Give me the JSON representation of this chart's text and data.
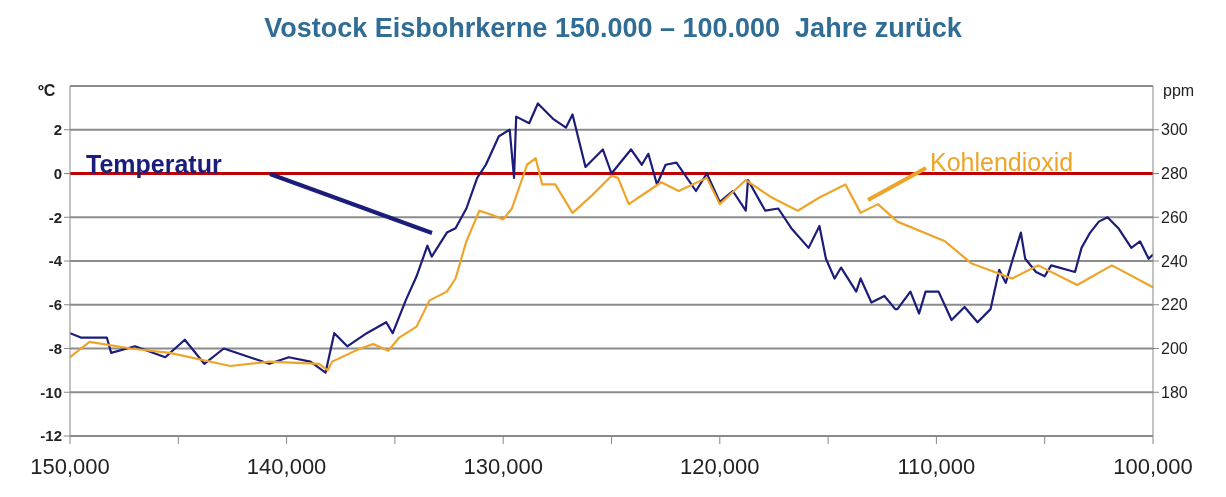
{
  "chart_data": {
    "type": "line",
    "title": "Vostock Eisbohrkerne 150.000 – 100.000  Jahre zurück",
    "ylabel": "ºC",
    "y2label": "ppm",
    "xlim": [
      150000,
      100000
    ],
    "xticks": [
      {
        "value": 150000,
        "label": "150,000"
      },
      {
        "value": 145000,
        "label": null
      },
      {
        "value": 140000,
        "label": "140,000"
      },
      {
        "value": 135000,
        "label": null
      },
      {
        "value": 130000,
        "label": "130,000"
      },
      {
        "value": 125000,
        "label": null
      },
      {
        "value": 120000,
        "label": "120,000"
      },
      {
        "value": 115000,
        "label": null
      },
      {
        "value": 110000,
        "label": "110,000"
      },
      {
        "value": 105000,
        "label": null
      },
      {
        "value": 100000,
        "label": "100,000"
      }
    ],
    "ylim": [
      -12,
      4
    ],
    "yticks": [
      -12,
      -10,
      -8,
      -6,
      -4,
      -2,
      0,
      2
    ],
    "y2lim": [
      160,
      320
    ],
    "y2ticks": [
      180,
      200,
      220,
      240,
      260,
      280,
      300
    ],
    "grid": "y",
    "marker": "none",
    "line_style": "solid",
    "ref_lines": [
      {
        "axis": "y",
        "value": 0,
        "color": "#c00000"
      }
    ],
    "series": [
      {
        "name": "Temperatur",
        "color": "#1c1c7a",
        "axis": "y",
        "x": [
          150000,
          149500,
          148300,
          148100,
          147000,
          145600,
          144700,
          143800,
          142900,
          141700,
          140800,
          139900,
          138900,
          138200,
          137800,
          137600,
          137200,
          136300,
          135400,
          135100,
          134500,
          134000,
          133500,
          133300,
          132600,
          132200,
          131700,
          131200,
          130800,
          130200,
          129700,
          129500,
          129400,
          128800,
          128400,
          127700,
          127100,
          126800,
          126200,
          125400,
          125000,
          124100,
          123600,
          123300,
          122900,
          122500,
          122000,
          121100,
          120600,
          120000,
          119400,
          118800,
          118700,
          117900,
          117300,
          116700,
          115900,
          115400,
          115100,
          114700,
          114400,
          113700,
          113500,
          113000,
          112400,
          111900,
          111800,
          111200,
          110800,
          110500,
          109900,
          109300,
          108700,
          108100,
          107500,
          107100,
          106800,
          106500,
          106100,
          105900,
          105400,
          105000,
          104700,
          103600,
          103300,
          102900,
          102500,
          102100,
          101600,
          101000,
          100600,
          100200,
          100000
        ],
        "values": [
          -7.3,
          -7.5,
          -7.5,
          -8.2,
          -7.9,
          -8.4,
          -7.6,
          -8.7,
          -8.0,
          -8.4,
          -8.7,
          -8.4,
          -8.6,
          -9.1,
          -7.3,
          -7.5,
          -7.9,
          -7.3,
          -6.8,
          -7.3,
          -5.8,
          -4.7,
          -3.3,
          -3.8,
          -2.7,
          -2.5,
          -1.6,
          -0.2,
          0.4,
          1.7,
          2.0,
          -0.2,
          2.6,
          2.3,
          3.2,
          2.5,
          2.1,
          2.7,
          0.3,
          1.1,
          0,
          1.1,
          0.4,
          0.9,
          -0.5,
          0.4,
          0.5,
          -0.8,
          0,
          -1.3,
          -0.8,
          -1.7,
          -0.3,
          -1.7,
          -1.6,
          -2.5,
          -3.4,
          -2.4,
          -3.9,
          -4.8,
          -4.3,
          -5.4,
          -4.8,
          -5.9,
          -5.6,
          -6.2,
          -6.2,
          -5.4,
          -6.4,
          -5.4,
          -5.4,
          -6.7,
          -6.1,
          -6.8,
          -6.2,
          -4.4,
          -5.0,
          -4.0,
          -2.7,
          -3.9,
          -4.5,
          -4.7,
          -4.2,
          -4.5,
          -3.4,
          -2.7,
          -2.2,
          -2.0,
          -2.5,
          -3.4,
          -3.1,
          -3.9,
          -3.7
        ]
      },
      {
        "name": "Kohlendioxid",
        "color": "#eea429",
        "axis": "y2",
        "x": [
          150000,
          149100,
          147200,
          145400,
          142600,
          140800,
          138500,
          138100,
          137900,
          136600,
          136000,
          135300,
          134800,
          134000,
          133400,
          132600,
          132200,
          131700,
          131100,
          130500,
          130000,
          129600,
          128900,
          128500,
          128200,
          127600,
          126800,
          125900,
          125000,
          124700,
          124200,
          123300,
          122700,
          121900,
          120600,
          120000,
          118800,
          117600,
          116400,
          115400,
          114200,
          113500,
          112700,
          111800,
          109600,
          108400,
          106500,
          105300,
          103500,
          101900,
          100000
        ],
        "values": [
          196,
          203,
          200,
          198,
          192,
          194,
          193,
          190,
          194,
          200,
          202,
          199,
          205,
          210,
          222,
          226,
          232,
          249,
          263,
          261,
          259,
          264,
          284,
          287,
          275,
          275,
          262,
          270,
          279,
          278,
          266,
          272,
          276,
          272,
          278,
          266,
          277,
          269,
          263,
          269,
          275,
          262,
          266,
          258,
          249,
          239,
          232,
          238,
          229,
          238,
          228
        ]
      }
    ]
  }
}
